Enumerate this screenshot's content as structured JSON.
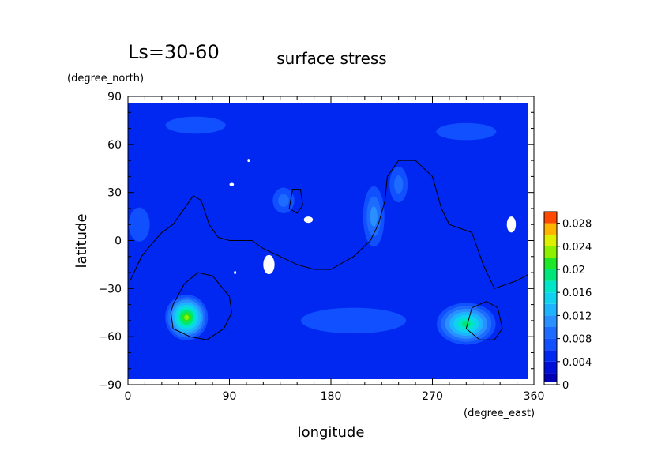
{
  "chart_data": {
    "type": "heatmap",
    "title": "surface stress",
    "period_label": "Ls=30-60",
    "xlabel": "longitude",
    "ylabel": "latitude",
    "x_units": "(degree_east)",
    "y_units": "(degree_north)",
    "xlim": [
      0,
      360
    ],
    "ylim": [
      -90,
      90
    ],
    "x_ticks": [
      0,
      90,
      180,
      270,
      360
    ],
    "y_ticks": [
      90,
      60,
      30,
      0,
      -30,
      -60,
      -90
    ],
    "colorbar": {
      "min": 0,
      "max": 0.03,
      "tick_values": [
        0,
        0.004,
        0.008,
        0.012,
        0.016,
        0.02,
        0.024,
        0.028
      ],
      "tick_labels": [
        "0",
        "0.004",
        "0.008",
        "0.012",
        "0.016",
        "0.02",
        "0.024",
        "0.028"
      ],
      "levels": 15,
      "colors": [
        "#0000b4",
        "#0010d8",
        "#0028f0",
        "#1050ff",
        "#1e6cff",
        "#2a90ff",
        "#1cb4ff",
        "#10d2f0",
        "#00e6c8",
        "#00e678",
        "#1ee628",
        "#8cf000",
        "#dcf000",
        "#ffb400",
        "#ff4800"
      ]
    },
    "background_level_color": "#0028f0",
    "blobs": [
      {
        "lon": 52,
        "lat": -48,
        "lon_radius": 20,
        "lat_radius": 15,
        "peak": 0.023
      },
      {
        "lon": 300,
        "lat": -52,
        "lon_radius": 28,
        "lat_radius": 14,
        "peak": 0.019
      },
      {
        "lon": 218,
        "lat": 15,
        "lon_radius": 11,
        "lat_radius": 22,
        "peak": 0.011
      },
      {
        "lon": 240,
        "lat": 35,
        "lon_radius": 10,
        "lat_radius": 14,
        "peak": 0.009
      },
      {
        "lon": 138,
        "lat": 25,
        "lon_radius": 12,
        "lat_radius": 10,
        "peak": 0.009
      },
      {
        "lon": 10,
        "lat": 10,
        "lon_radius": 14,
        "lat_radius": 16,
        "peak": 0.007
      },
      {
        "lon": 200,
        "lat": -50,
        "lon_radius": 70,
        "lat_radius": 12,
        "peak": 0.006
      },
      {
        "lon": 60,
        "lat": 72,
        "lon_radius": 40,
        "lat_radius": 8,
        "peak": 0.006
      },
      {
        "lon": 300,
        "lat": 68,
        "lon_radius": 40,
        "lat_radius": 8,
        "peak": 0.006
      }
    ],
    "topography_contours": [
      {
        "points": [
          [
            2,
            -25
          ],
          [
            12,
            -10
          ],
          [
            20,
            -3
          ],
          [
            30,
            5
          ],
          [
            40,
            10
          ],
          [
            50,
            20
          ],
          [
            58,
            28
          ],
          [
            65,
            25
          ],
          [
            72,
            10
          ],
          [
            80,
            2
          ],
          [
            90,
            0
          ],
          [
            110,
            0
          ],
          [
            120,
            -5
          ],
          [
            150,
            -15
          ],
          [
            165,
            -18
          ],
          [
            180,
            -18
          ],
          [
            200,
            -10
          ],
          [
            215,
            0
          ],
          [
            222,
            10
          ],
          [
            228,
            25
          ],
          [
            230,
            40
          ],
          [
            240,
            50
          ],
          [
            255,
            50
          ],
          [
            270,
            40
          ],
          [
            278,
            20
          ],
          [
            285,
            10
          ],
          [
            305,
            5
          ],
          [
            315,
            -15
          ],
          [
            325,
            -30
          ],
          [
            345,
            -25
          ],
          [
            358,
            -20
          ]
        ]
      },
      {
        "closed": true,
        "points": [
          [
            40,
            -40
          ],
          [
            50,
            -27
          ],
          [
            62,
            -20
          ],
          [
            75,
            -22
          ],
          [
            90,
            -35
          ],
          [
            92,
            -45
          ],
          [
            85,
            -55
          ],
          [
            70,
            -62
          ],
          [
            55,
            -60
          ],
          [
            40,
            -55
          ],
          [
            38,
            -45
          ]
        ]
      },
      {
        "closed": true,
        "points": [
          [
            300,
            -55
          ],
          [
            305,
            -42
          ],
          [
            318,
            -38
          ],
          [
            328,
            -42
          ],
          [
            332,
            -55
          ],
          [
            325,
            -62
          ],
          [
            312,
            -62
          ]
        ]
      },
      {
        "closed": true,
        "points": [
          [
            143,
            20
          ],
          [
            146,
            32
          ],
          [
            153,
            32
          ],
          [
            155,
            22
          ],
          [
            150,
            17
          ]
        ]
      }
    ],
    "missing_data_patches": [
      {
        "lon": 92,
        "lat": 35,
        "lon_radius": 2,
        "lat_radius": 1
      },
      {
        "lon": 107,
        "lat": 50,
        "lon_radius": 1,
        "lat_radius": 1
      },
      {
        "lon": 160,
        "lat": 13,
        "lon_radius": 4,
        "lat_radius": 2
      },
      {
        "lon": 125,
        "lat": -15,
        "lon_radius": 5,
        "lat_radius": 6
      },
      {
        "lon": 340,
        "lat": 10,
        "lon_radius": 4,
        "lat_radius": 5
      },
      {
        "lon": 95,
        "lat": -20,
        "lon_radius": 1,
        "lat_radius": 1
      }
    ]
  }
}
